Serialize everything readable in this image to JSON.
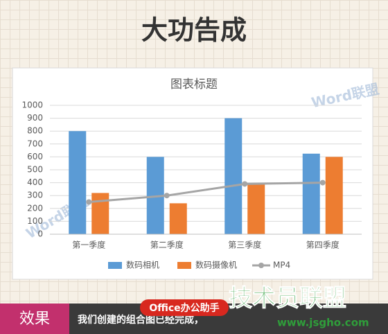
{
  "header": {
    "title": "大功告成"
  },
  "chart_data": {
    "type": "bar",
    "title": "图表标题",
    "categories": [
      "第一季度",
      "第二季度",
      "第三季度",
      "第四季度"
    ],
    "series": [
      {
        "name": "数码相机",
        "color": "#5b9bd5",
        "type": "bar",
        "values": [
          800,
          600,
          900,
          625
        ]
      },
      {
        "name": "数码摄像机",
        "color": "#ed7d31",
        "type": "bar",
        "values": [
          320,
          240,
          390,
          600
        ]
      },
      {
        "name": "MP4",
        "color": "#a5a5a5",
        "type": "line",
        "values": [
          250,
          300,
          390,
          400
        ]
      }
    ],
    "ylim": [
      0,
      1000
    ],
    "yticks": [
      0,
      100,
      200,
      300,
      400,
      500,
      600,
      700,
      800,
      900,
      1000
    ],
    "grid": true,
    "legend": "bottom"
  },
  "watermarks": {
    "chart": "Word联盟",
    "badge": "Office办公助手",
    "logo": "技术员联盟",
    "url": "www.jsgho.com"
  },
  "footer": {
    "label": "效果",
    "text": "我们创建的组合图已经完成，"
  }
}
